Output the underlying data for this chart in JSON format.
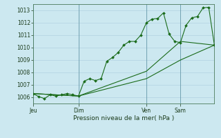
{
  "background_color": "#cce8f0",
  "grid_color": "#aaccdd",
  "line_color": "#1a6b1a",
  "marker_color": "#1a6b1a",
  "title": "Pression niveau de la mer( hPa )",
  "ylim": [
    1005.5,
    1013.5
  ],
  "yticks": [
    1006,
    1007,
    1008,
    1009,
    1010,
    1011,
    1012,
    1013
  ],
  "day_labels": [
    "Jeu",
    "Dim",
    "Ven",
    "Sam"
  ],
  "day_positions": [
    0,
    8,
    20,
    26
  ],
  "xlim": [
    0,
    32
  ],
  "series1_x": [
    0,
    1,
    2,
    3,
    4,
    5,
    6,
    7,
    8,
    9,
    10,
    11,
    12,
    13,
    14,
    15,
    16,
    17,
    18,
    19,
    20,
    21,
    22,
    23,
    24,
    25,
    26,
    27,
    28,
    29,
    30,
    31,
    32
  ],
  "series1_y": [
    1006.3,
    1006.05,
    1005.9,
    1006.2,
    1006.1,
    1006.2,
    1006.3,
    1006.2,
    1006.1,
    1007.3,
    1007.5,
    1007.35,
    1007.5,
    1008.9,
    1009.2,
    1009.6,
    1010.2,
    1010.5,
    1010.5,
    1011.0,
    1012.0,
    1012.3,
    1012.35,
    1012.8,
    1011.1,
    1010.5,
    1010.4,
    1011.8,
    1012.4,
    1012.5,
    1013.2,
    1013.25,
    1010.2
  ],
  "series2_x": [
    0,
    8,
    20,
    26,
    32
  ],
  "series2_y": [
    1006.3,
    1006.1,
    1008.1,
    1010.5,
    1010.2
  ],
  "series3_x": [
    0,
    8,
    20,
    26,
    32
  ],
  "series3_y": [
    1006.3,
    1006.1,
    1007.5,
    1009.0,
    1010.2
  ],
  "figsize": [
    3.2,
    2.0
  ],
  "dpi": 100
}
